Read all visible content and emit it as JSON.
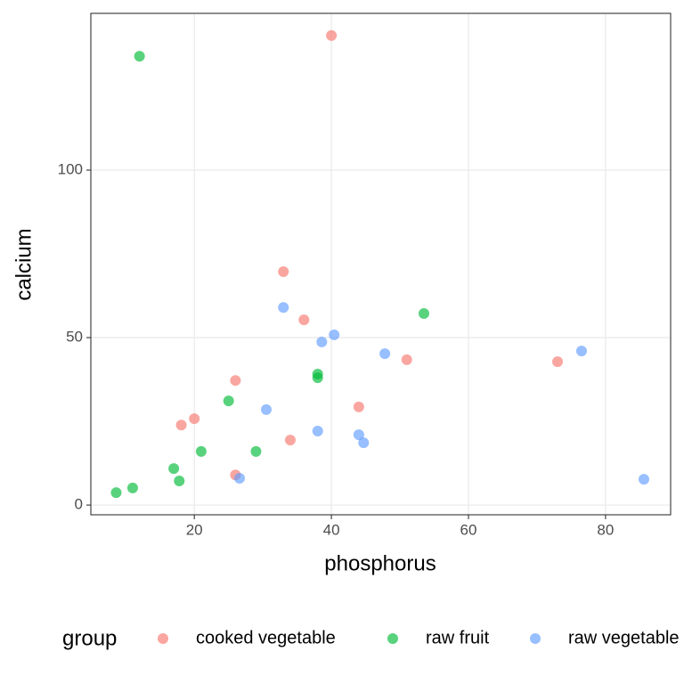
{
  "chart_data": {
    "type": "scatter",
    "x_label": "phosphorus",
    "y_label": "calcium",
    "legend_title": "group",
    "legend_position": "bottom",
    "xlim": [
      4.9,
      89.5
    ],
    "ylim": [
      -2.9,
      146.8
    ],
    "xticks": [
      20,
      40,
      60,
      80
    ],
    "yticks": [
      0,
      50,
      100
    ],
    "grid": true,
    "series": [
      {
        "name": "cooked vegetable",
        "color": "#F8766D",
        "x": [
          40,
          33,
          36,
          26,
          18.1,
          20,
          26,
          34,
          44,
          51,
          73
        ],
        "values": [
          140.2,
          69.7,
          55.3,
          37.2,
          23.9,
          25.8,
          9,
          19.4,
          29.3,
          43.4,
          42.8
        ]
      },
      {
        "name": "raw fruit",
        "color": "#00BA38",
        "x": [
          12,
          53.5,
          38,
          38,
          25,
          21,
          29,
          17,
          17.8,
          11,
          8.6
        ],
        "values": [
          134,
          57.2,
          39.1,
          38,
          31.1,
          16,
          16,
          10.9,
          7.2,
          5.1,
          3.7
        ]
      },
      {
        "name": "raw vegetable",
        "color": "#619CFF",
        "x": [
          33,
          38.6,
          40.4,
          47.8,
          76.5,
          30.5,
          38,
          44,
          44.7,
          26.6,
          85.6
        ],
        "values": [
          59,
          48.7,
          50.8,
          45.2,
          46,
          28.5,
          22.1,
          21,
          18.6,
          8,
          7.7
        ]
      }
    ]
  }
}
